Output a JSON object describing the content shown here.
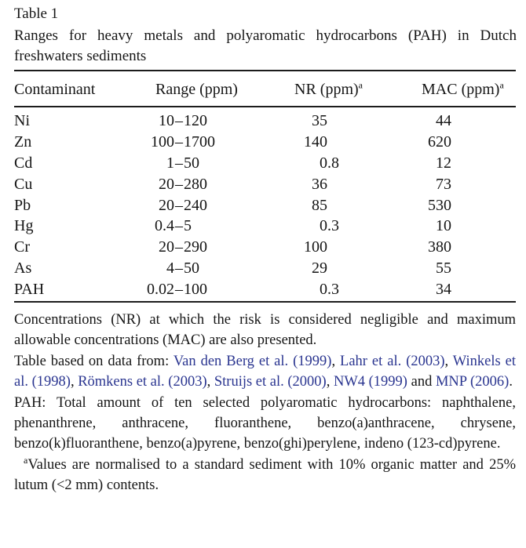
{
  "caption": {
    "label": "Table 1",
    "title": "Ranges for heavy metals and polyaromatic hydrocarbons (PAH) in Dutch freshwaters sediments"
  },
  "table": {
    "columns": [
      {
        "label": "Contaminant",
        "sup": ""
      },
      {
        "label": "Range (ppm)",
        "sup": ""
      },
      {
        "label": "NR (ppm)",
        "sup": "a"
      },
      {
        "label": "MAC (ppm)",
        "sup": "a"
      }
    ],
    "rows": [
      {
        "contaminant": "Ni",
        "range": "10–120",
        "nr": "35",
        "mac": "44"
      },
      {
        "contaminant": "Zn",
        "range": "100–1700",
        "nr": "140",
        "mac": "620"
      },
      {
        "contaminant": "Cd",
        "range": "1–50",
        "nr": "0.8",
        "mac": "12"
      },
      {
        "contaminant": "Cu",
        "range": "20–280",
        "nr": "36",
        "mac": "73"
      },
      {
        "contaminant": "Pb",
        "range": "20–240",
        "nr": "85",
        "mac": "530"
      },
      {
        "contaminant": "Hg",
        "range": "0.4–5",
        "nr": "0.3",
        "mac": "10"
      },
      {
        "contaminant": "Cr",
        "range": "20–290",
        "nr": "100",
        "mac": "380"
      },
      {
        "contaminant": "As",
        "range": "4–50",
        "nr": "29",
        "mac": "55"
      },
      {
        "contaminant": "PAH",
        "range": "0.02–100",
        "nr": "0.3",
        "mac": "34"
      }
    ]
  },
  "footnotes": {
    "general": "Concentrations (NR) at which the risk is considered negligible and maximum allowable concentrations (MAC) are also presented.",
    "sources": [
      {
        "text": "Table based on data from: ",
        "link": false
      },
      {
        "text": "Van den Berg et al. (1999)",
        "link": true
      },
      {
        "text": ", ",
        "link": false
      },
      {
        "text": "Lahr et al. (2003)",
        "link": true
      },
      {
        "text": ", ",
        "link": false
      },
      {
        "text": "Winkels et al. (1998)",
        "link": true
      },
      {
        "text": ", ",
        "link": false
      },
      {
        "text": "Römkens et al. (2003)",
        "link": true
      },
      {
        "text": ", ",
        "link": false
      },
      {
        "text": "Struijs et al. (2000)",
        "link": true
      },
      {
        "text": ", ",
        "link": false
      },
      {
        "text": "NW4 (1999)",
        "link": true
      },
      {
        "text": " and ",
        "link": false
      },
      {
        "text": "MNP (2006)",
        "link": true
      },
      {
        "text": ".",
        "link": false
      }
    ],
    "pah_definition": "PAH: Total amount of ten selected polyaromatic hydrocarbons: naphthalene, phenanthrene, anthracene, fluoranthene, benzo(a)anthracene, chrysene, benzo(k)fluoranthene, benzo(a)pyrene, benzo(ghi)perylene, indeno (123-cd)pyrene.",
    "footnote_a": {
      "marker": "a",
      "text": "Values are normalised to a standard sediment with 10% organic matter and 25% lutum (<2 mm) contents."
    }
  },
  "colors": {
    "background": "#ffffff",
    "text": "#151515",
    "rule": "#1c1c1c",
    "link": "#2a3590"
  }
}
